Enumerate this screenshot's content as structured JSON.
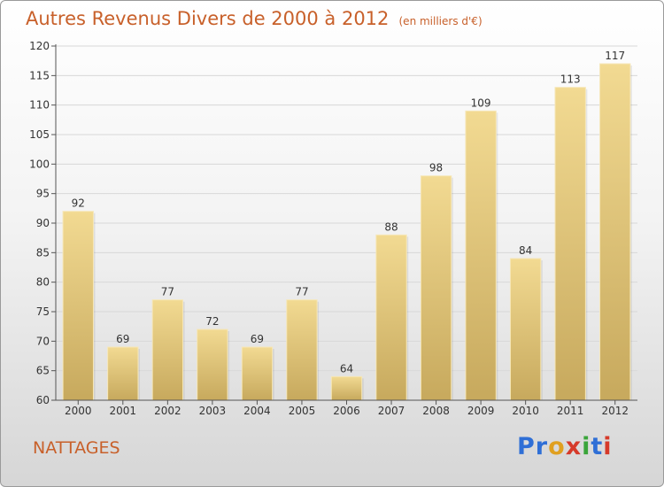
{
  "chart_data": {
    "type": "bar",
    "title": "Autres Revenus Divers de 2000 à 2012",
    "subtitle": "(en milliers d'€)",
    "categories": [
      "2000",
      "2001",
      "2002",
      "2003",
      "2004",
      "2005",
      "2006",
      "2007",
      "2008",
      "2009",
      "2010",
      "2011",
      "2012"
    ],
    "values": [
      92,
      69,
      77,
      72,
      69,
      77,
      64,
      88,
      98,
      109,
      84,
      113,
      117
    ],
    "xlabel": "",
    "ylabel": "",
    "ylim": [
      60,
      120
    ],
    "yticks": [
      60,
      65,
      70,
      75,
      80,
      85,
      90,
      95,
      100,
      105,
      110,
      115,
      120
    ],
    "grid": true,
    "bar_color": "#e8cd84",
    "data_labels": true
  },
  "footer": {
    "commune": "NATTAGES",
    "logo": [
      "P",
      "r",
      "o",
      "x",
      "i",
      "t",
      "i"
    ],
    "logo_colors": [
      "#2f6fd6",
      "#2f6fd6",
      "#e0a020",
      "#d63a2a",
      "#3aa53a",
      "#2f6fd6",
      "#d63a2a"
    ]
  },
  "colors": {
    "title": "#c8602a",
    "grid": "#d8d8d8",
    "axis": "#555555"
  }
}
